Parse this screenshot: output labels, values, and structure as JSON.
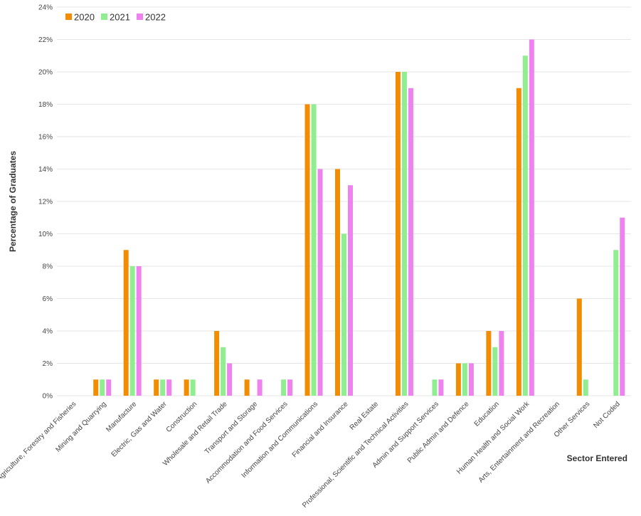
{
  "chart_data": {
    "type": "bar",
    "title": "",
    "xlabel": "Sector Entered",
    "ylabel": "Percentage of Graduates",
    "ylim": [
      0,
      24
    ],
    "yticks": [
      "0%",
      "2%",
      "4%",
      "6%",
      "8%",
      "10%",
      "12%",
      "14%",
      "16%",
      "18%",
      "20%",
      "22%",
      "24%"
    ],
    "grid": true,
    "legend_position": "top-left",
    "categories": [
      "Agriculture, Forestry and Fisheries",
      "Mining and Quarrying",
      "Manufacture",
      "Electric, Gas and Water",
      "Construction",
      "Wholesale and Retail Trade",
      "Transport and Storage",
      "Accommodation and Food Services",
      "Information and Communications",
      "Financial and Insurance",
      "Real Estate",
      "Professional, Scientific and Technical Activities",
      "Admin and Support Services",
      "Public Admin and Defence",
      "Education",
      "Human Health and Social Work",
      "Arts, Entertainment and Recreation",
      "Other Services",
      "Not Coded"
    ],
    "series": [
      {
        "name": "2020",
        "color": "#f28c00",
        "values": [
          0,
          1,
          9,
          1,
          1,
          4,
          1,
          0,
          18,
          14,
          0,
          20,
          0,
          2,
          4,
          19,
          0,
          6,
          0
        ]
      },
      {
        "name": "2021",
        "color": "#90ee90",
        "values": [
          0,
          1,
          8,
          1,
          1,
          3,
          0,
          1,
          18,
          10,
          0,
          20,
          1,
          2,
          3,
          21,
          0,
          1,
          9
        ]
      },
      {
        "name": "2022",
        "color": "#ee82ee",
        "values": [
          0,
          1,
          8,
          1,
          0,
          2,
          1,
          1,
          14,
          13,
          0,
          19,
          1,
          2,
          4,
          22,
          0,
          0,
          11
        ]
      }
    ]
  }
}
